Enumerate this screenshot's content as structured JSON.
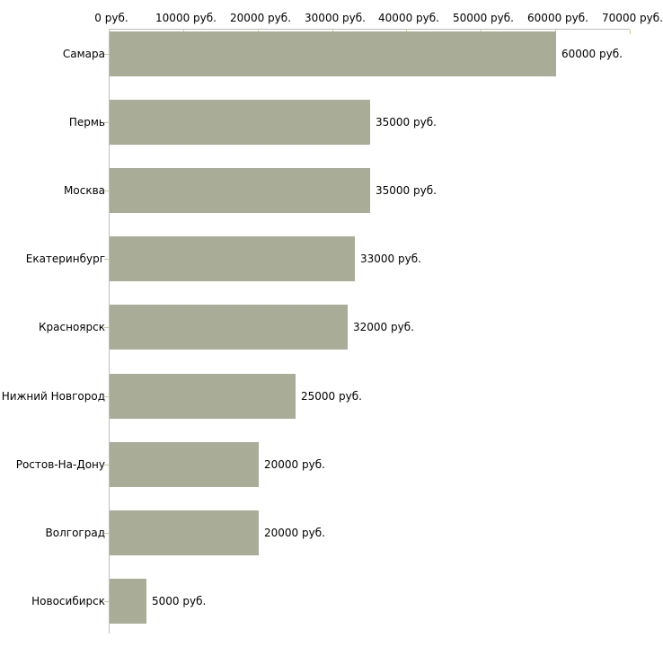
{
  "chart_data": {
    "type": "bar",
    "orientation": "horizontal",
    "title": "",
    "xlabel": "",
    "ylabel": "",
    "xlim": [
      0,
      70000
    ],
    "grid": false,
    "legend": null,
    "categories": [
      "Самара",
      "Пермь",
      "Москва",
      "Екатеринбург",
      "Красноярск",
      "Нижний Новгород",
      "Ростов-На-Дону",
      "Волгоград",
      "Новосибирск"
    ],
    "values": [
      60000,
      35000,
      35000,
      33000,
      32000,
      25000,
      20000,
      20000,
      5000
    ],
    "value_labels": [
      "60000 руб.",
      "35000 руб.",
      "35000 руб.",
      "33000 руб.",
      "32000 руб.",
      "25000 руб.",
      "20000 руб.",
      "20000 руб.",
      "5000 руб."
    ],
    "x_tick_values": [
      0,
      10000,
      20000,
      30000,
      40000,
      50000,
      60000,
      70000
    ],
    "x_tick_labels": [
      "0 руб.",
      "10000 руб.",
      "20000 руб.",
      "30000 руб.",
      "40000 руб.",
      "50000 руб.",
      "60000 руб.",
      "70000 руб."
    ],
    "colors": {
      "bar": "#a9ad97",
      "axis_line": "#bdbdbd",
      "tick_mark": "#cccc99",
      "text": "#000000",
      "background": "#ffffff"
    }
  }
}
